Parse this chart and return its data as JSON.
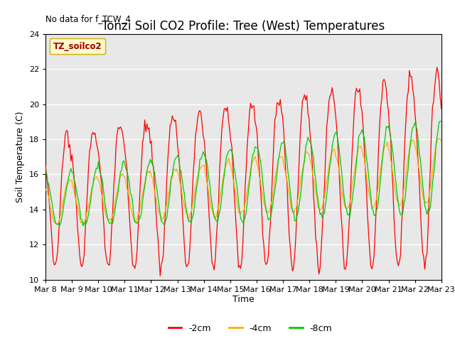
{
  "title": "Tonzi Soil CO2 Profile: Tree (West) Temperatures",
  "no_data_text": "No data for f_TCW_4",
  "ylabel": "Soil Temperature (C)",
  "xlabel": "Time",
  "ylim": [
    10,
    24
  ],
  "yticks": [
    10,
    12,
    14,
    16,
    18,
    20,
    22,
    24
  ],
  "x_tick_labels": [
    "Mar 8",
    "Mar 9",
    "Mar 10",
    "Mar 11",
    "Mar 12",
    "Mar 13",
    "Mar 14",
    "Mar 15",
    "Mar 16",
    "Mar 17",
    "Mar 18",
    "Mar 19",
    "Mar 20",
    "Mar 21",
    "Mar 22",
    "Mar 23"
  ],
  "legend_label": "TZ_soilco2",
  "legend_bg": "#ffffcc",
  "legend_edge": "#ccaa00",
  "color_2cm": "#ff0000",
  "color_4cm": "#ffaa00",
  "color_8cm": "#00cc00",
  "line_labels": [
    "-2cm",
    "-4cm",
    "-8cm"
  ],
  "background_color": "#e8e8e8",
  "title_fontsize": 12,
  "axis_fontsize": 9,
  "tick_fontsize": 8
}
